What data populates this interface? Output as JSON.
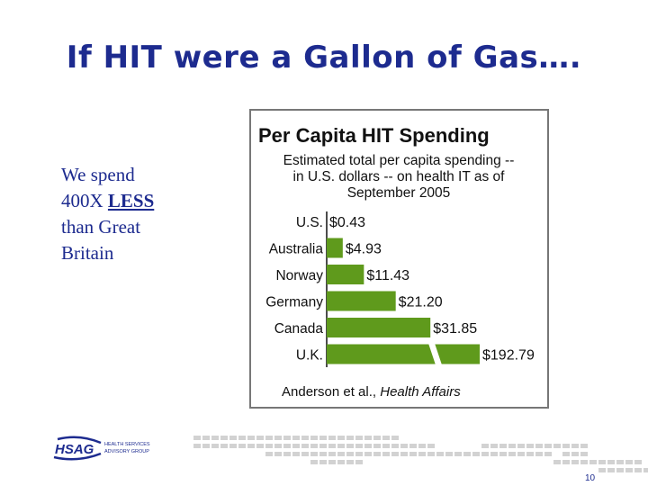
{
  "slide": {
    "title": "If HIT were a Gallon of Gas….",
    "body_line1": "We spend",
    "body_prefix": "400X ",
    "body_emphasis": "LESS",
    "body_line3": "than Great",
    "body_line4": "Britain",
    "page_number": "10"
  },
  "logo": {
    "mark": "HSAG",
    "line1": "HEALTH SERVICES",
    "line2": "ADVISORY GROUP"
  },
  "colors": {
    "title": "#1d2b8f",
    "bar": "#5f9a1c",
    "deco": "#d2d2d2"
  },
  "chart_data": {
    "type": "bar",
    "orientation": "horizontal",
    "title": "Per Capita HIT Spending",
    "subtitle": [
      "Estimated total per capita spending --",
      "in U.S. dollars -- on health IT as of",
      "September 2005"
    ],
    "categories": [
      "U.S.",
      "Australia",
      "Norway",
      "Germany",
      "Canada",
      "U.K."
    ],
    "values": [
      0.43,
      4.93,
      11.43,
      21.2,
      31.85,
      192.79
    ],
    "value_labels": [
      "$0.43",
      "$4.93",
      "$11.43",
      "$21.20",
      "$31.85",
      "$192.79"
    ],
    "axis_break_after": 40,
    "axis_max": 47,
    "source_prefix": "Anderson et al., ",
    "source_journal": "Health Affairs"
  }
}
